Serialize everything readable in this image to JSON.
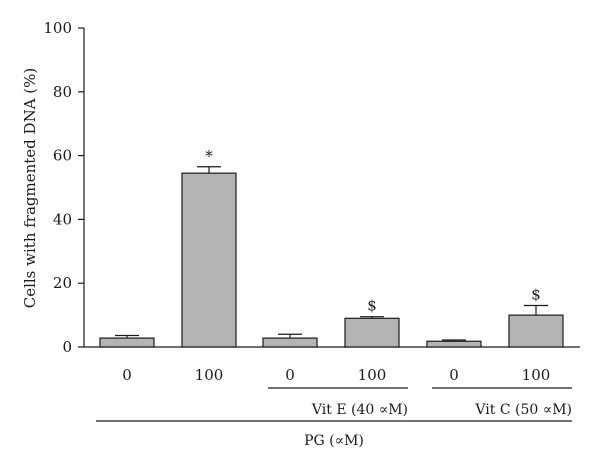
{
  "chart_data": {
    "type": "bar",
    "categories": [
      "0",
      "100",
      "0",
      "100",
      "0",
      "100"
    ],
    "values": [
      2.8,
      54.5,
      2.8,
      9.0,
      1.8,
      10.0
    ],
    "errors": [
      0.8,
      2.0,
      1.2,
      0.5,
      0.4,
      3.0
    ],
    "annotations": [
      "",
      "*",
      "",
      "$",
      "",
      "$"
    ],
    "ylabel": "Cells with fragmented DNA (%)",
    "ylim": [
      0,
      100
    ],
    "yticks": [
      0,
      20,
      40,
      60,
      80,
      100
    ],
    "groups": [
      {
        "label": "Vit E (40 ∝M)",
        "categories": [
          2,
          3
        ]
      },
      {
        "label": "Vit C (50 ∝M)",
        "categories": [
          4,
          5
        ]
      }
    ],
    "bottom_label": "PG (∝M)",
    "bar_color": "#b4b4b4",
    "grid": false,
    "legend": "none"
  }
}
